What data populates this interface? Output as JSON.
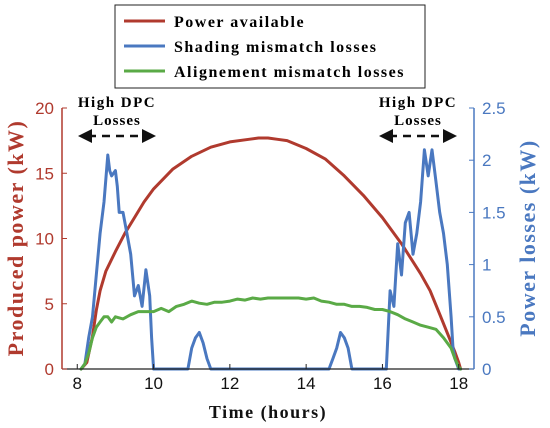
{
  "chart_data": {
    "type": "line",
    "title": "",
    "xlabel": "Time (hours)",
    "ylabel": "Produced power (kW)",
    "ylabel_right": "Power losses (kW)",
    "xlim": [
      7.6,
      18.4
    ],
    "ylim": [
      0,
      20
    ],
    "ylim_right": [
      0,
      2.5
    ],
    "x_ticks": [
      "8",
      "10",
      "12",
      "14",
      "16",
      "18"
    ],
    "y_ticks": [
      "0",
      "5",
      "10",
      "15",
      "20"
    ],
    "y_ticks_right": [
      "0",
      "0.5",
      "1",
      "1.5",
      "2",
      "2.5"
    ],
    "legend": [
      "Power available",
      "Shading mismatch losses",
      "Alignement mismatch losses"
    ],
    "legend_position": "top-center",
    "annotations": {
      "left_line1": "High DPC",
      "left_line2": "Losses",
      "right_line1": "High DPC",
      "right_line2": "Losses"
    },
    "colors": {
      "power": "#b03a2e",
      "shading": "#4a78c0",
      "alignment": "#5aaa46",
      "left_axis": "#b03a2e",
      "right_axis": "#4a78c0"
    },
    "series": [
      {
        "name": "Power available",
        "axis": "left",
        "x": [
          8.1,
          8.25,
          8.4,
          8.5,
          8.6,
          8.75,
          9.0,
          9.25,
          9.5,
          9.75,
          10.0,
          10.5,
          11.0,
          11.5,
          12.0,
          12.5,
          12.75,
          13.0,
          13.25,
          13.5,
          14.0,
          14.5,
          15.0,
          15.5,
          16.0,
          16.5,
          17.0,
          17.25,
          17.5,
          17.75,
          17.9,
          18.0,
          18.05
        ],
        "values": [
          0.0,
          0.5,
          2.5,
          4.5,
          6.0,
          7.5,
          9.0,
          10.4,
          11.6,
          12.8,
          13.8,
          15.3,
          16.3,
          17.0,
          17.4,
          17.6,
          17.7,
          17.7,
          17.6,
          17.5,
          16.9,
          16.1,
          14.8,
          13.3,
          11.6,
          9.6,
          7.3,
          6.0,
          4.2,
          2.4,
          1.3,
          0.5,
          0.0
        ]
      },
      {
        "name": "Shading mismatch losses",
        "axis": "right",
        "x": [
          8.1,
          8.2,
          8.3,
          8.4,
          8.5,
          8.6,
          8.7,
          8.8,
          8.85,
          8.9,
          9.0,
          9.05,
          9.1,
          9.2,
          9.3,
          9.4,
          9.5,
          9.6,
          9.7,
          9.8,
          9.9,
          9.95,
          10.0,
          10.9,
          11.0,
          11.1,
          11.2,
          11.3,
          11.4,
          11.5,
          14.6,
          14.7,
          14.8,
          14.9,
          15.0,
          15.1,
          15.2,
          16.1,
          16.2,
          16.3,
          16.4,
          16.5,
          16.6,
          16.7,
          16.8,
          16.9,
          17.0,
          17.1,
          17.2,
          17.3,
          17.4,
          17.5,
          17.6,
          17.7,
          17.8,
          17.85,
          17.9,
          18.0,
          18.05
        ],
        "values": [
          0.0,
          0.05,
          0.3,
          0.5,
          0.9,
          1.3,
          1.6,
          2.05,
          1.9,
          1.85,
          1.9,
          1.75,
          1.5,
          1.5,
          1.3,
          1.1,
          0.7,
          0.8,
          0.6,
          0.95,
          0.7,
          0.3,
          0.0,
          0.0,
          0.2,
          0.3,
          0.35,
          0.25,
          0.1,
          0.0,
          0.0,
          0.1,
          0.2,
          0.35,
          0.3,
          0.2,
          0.0,
          0.0,
          0.75,
          0.6,
          1.2,
          0.9,
          1.4,
          1.5,
          1.1,
          1.3,
          1.6,
          2.1,
          1.85,
          2.1,
          1.8,
          1.5,
          1.3,
          1.0,
          0.5,
          0.2,
          0.1,
          0.0,
          0.0
        ]
      },
      {
        "name": "Alignement mismatch losses",
        "axis": "right",
        "x": [
          8.1,
          8.2,
          8.3,
          8.4,
          8.5,
          8.6,
          8.7,
          8.8,
          8.9,
          9.0,
          9.2,
          9.4,
          9.6,
          9.8,
          10.0,
          10.2,
          10.4,
          10.6,
          10.8,
          11.0,
          11.2,
          11.4,
          11.6,
          11.8,
          12.0,
          12.2,
          12.4,
          12.6,
          12.8,
          13.0,
          13.2,
          13.4,
          13.6,
          13.8,
          14.0,
          14.2,
          14.4,
          14.6,
          14.8,
          15.0,
          15.2,
          15.4,
          15.6,
          15.8,
          16.0,
          16.2,
          16.4,
          16.6,
          16.8,
          17.0,
          17.2,
          17.4,
          17.6,
          17.8,
          17.9,
          18.0,
          18.05
        ],
        "values": [
          0.0,
          0.05,
          0.15,
          0.3,
          0.4,
          0.45,
          0.5,
          0.5,
          0.45,
          0.5,
          0.48,
          0.52,
          0.55,
          0.55,
          0.55,
          0.58,
          0.55,
          0.6,
          0.62,
          0.65,
          0.63,
          0.62,
          0.64,
          0.64,
          0.65,
          0.67,
          0.66,
          0.68,
          0.67,
          0.68,
          0.68,
          0.68,
          0.68,
          0.68,
          0.67,
          0.68,
          0.65,
          0.64,
          0.62,
          0.62,
          0.6,
          0.6,
          0.59,
          0.57,
          0.57,
          0.55,
          0.52,
          0.48,
          0.45,
          0.42,
          0.4,
          0.38,
          0.3,
          0.2,
          0.1,
          0.02,
          0.0
        ]
      }
    ]
  }
}
